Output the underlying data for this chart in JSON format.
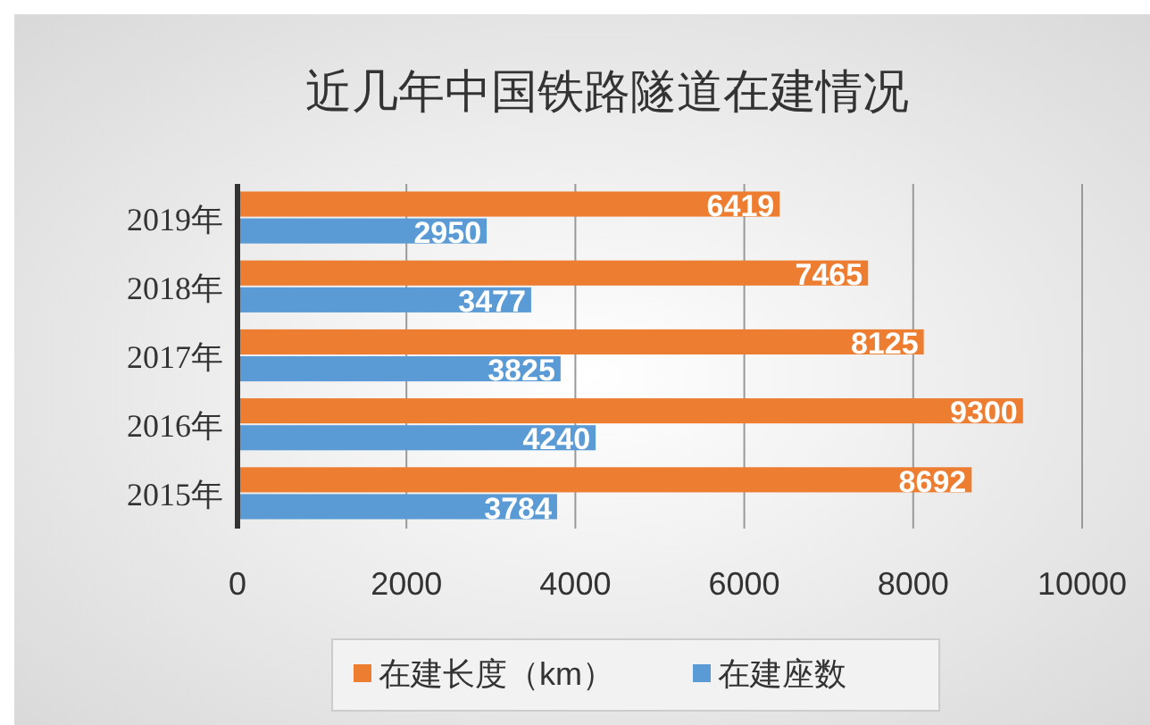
{
  "chart_data": {
    "type": "bar",
    "orientation": "horizontal",
    "title": "近几年中国铁路隧道在建情况",
    "categories": [
      "2019年",
      "2018年",
      "2017年",
      "2016年",
      "2015年"
    ],
    "series": [
      {
        "name": "在建长度（km）",
        "color": "#ed7d31",
        "values": [
          6419,
          7465,
          8125,
          9300,
          8692
        ]
      },
      {
        "name": "在建座数",
        "color": "#5b9bd5",
        "values": [
          2950,
          3477,
          3825,
          4240,
          3784
        ]
      }
    ],
    "xlim": [
      0,
      10000
    ],
    "xticks": [
      0,
      2000,
      4000,
      6000,
      8000,
      10000
    ],
    "grid": "x",
    "legend": "bottom",
    "data_labels": true
  }
}
